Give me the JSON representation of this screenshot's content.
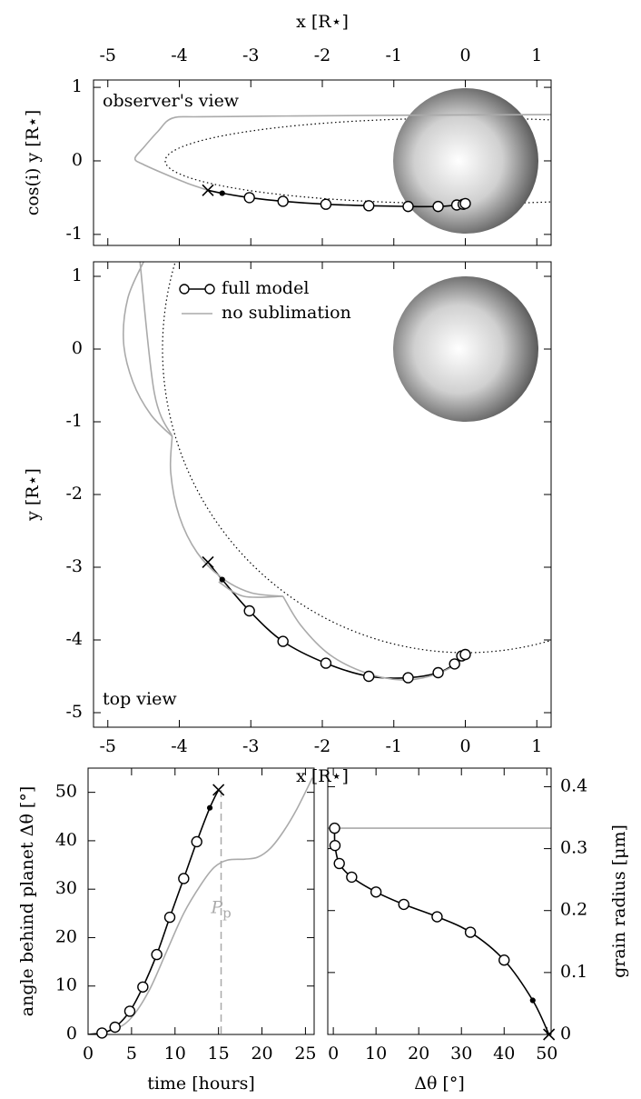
{
  "chart_data": [
    {
      "type": "line",
      "ylabel": "cos(i) y [R⋆]",
      "xlabel": "x [R⋆]",
      "x_axis_side": "top",
      "y_axis_side": "left",
      "annotation": "observer's view",
      "annotation_corner": "upper left",
      "xlim": [
        -5.2,
        1.2
      ],
      "ylim": [
        -1.15,
        1.1
      ],
      "xticks": [
        -5,
        -4,
        -3,
        -2,
        -1,
        0,
        1
      ],
      "yticks": [
        -1,
        0,
        1
      ],
      "series": [
        {
          "color": "#aaaaaa",
          "x": [
            1.2,
            -1.0,
            -2.5,
            -3.7,
            -4.1,
            -4.3,
            -4.5,
            -4.62,
            -4.5,
            -4.2,
            -3.9,
            -3.6
          ],
          "values": [
            0.63,
            0.62,
            0.61,
            0.6,
            0.58,
            0.4,
            0.18,
            0.03,
            -0.05,
            -0.18,
            -0.3,
            -0.4
          ],
          "markers": []
        },
        {
          "color": "#000000",
          "x": [
            -3.6,
            -3.4,
            -3.02,
            -2.55,
            -1.95,
            -1.35,
            -0.8,
            -0.38,
            -0.12,
            -0.03,
            0
          ],
          "values": [
            -0.4,
            -0.44,
            -0.5,
            -0.55,
            -0.59,
            -0.61,
            -0.62,
            -0.62,
            -0.6,
            -0.59,
            -0.58
          ],
          "markers": [
            "x",
            "dot",
            "o",
            "o",
            "o",
            "o",
            "o",
            "o",
            "o",
            "o",
            "o"
          ]
        }
      ]
    },
    {
      "type": "line",
      "ylabel": "y [R⋆]",
      "xlabel": "x [R⋆]",
      "x_axis_side": "bottom",
      "y_axis_side": "left",
      "annotation": "top view",
      "annotation_corner": "lower left",
      "legend": "upper left",
      "xlim": [
        -5.2,
        1.2
      ],
      "ylim": [
        -5.2,
        1.2
      ],
      "xticks": [
        -5,
        -4,
        -3,
        -2,
        -1,
        0,
        1
      ],
      "yticks": [
        -5,
        -4,
        -3,
        -2,
        -1,
        0,
        1
      ],
      "series": [
        {
          "name": "full model",
          "color": "#000000",
          "x": [
            -3.6,
            -3.4,
            -3.02,
            -2.55,
            -1.95,
            -1.35,
            -0.8,
            -0.38,
            -0.15,
            -0.05,
            0
          ],
          "values": [
            -2.93,
            -3.17,
            -3.6,
            -4.02,
            -4.32,
            -4.5,
            -4.52,
            -4.45,
            -4.33,
            -4.22,
            -4.2
          ],
          "markers": [
            "x",
            "dot",
            "o",
            "o",
            "o",
            "o",
            "o",
            "o",
            "o",
            "o",
            "o"
          ]
        },
        {
          "name": "no sublimation",
          "color": "#aaaaaa",
          "x": [
            -4.5,
            -4.72,
            -4.78,
            -4.65,
            -4.4,
            -4.1,
            null,
            -4.1,
            -4.12,
            -4.0,
            -3.75,
            -3.4,
            -3.0,
            -2.55,
            null,
            -3.45,
            -3.1,
            -2.55,
            null,
            -2.55,
            -2.3,
            -1.9,
            -1.4,
            -0.9,
            -0.5,
            -0.15,
            0,
            null,
            -4.1,
            -4.35,
            -4.55
          ],
          "values": [
            1.2,
            0.7,
            0.1,
            -0.45,
            -0.9,
            -1.2,
            null,
            -1.2,
            -1.7,
            -2.3,
            -2.8,
            -3.15,
            -3.35,
            -3.4,
            null,
            -3.2,
            -3.4,
            -3.4,
            null,
            -3.4,
            -3.8,
            -4.2,
            -4.45,
            -4.55,
            -4.5,
            -4.35,
            -4.2,
            null,
            -1.2,
            -0.6,
            1.2
          ],
          "markers": []
        }
      ]
    },
    {
      "type": "line",
      "ylabel": "angle behind planet Δθ [°]",
      "xlabel": "time [hours]",
      "x_axis_side": "bottom",
      "y_axis_side": "left",
      "xlim": [
        0,
        26
      ],
      "ylim": [
        0,
        55
      ],
      "xticks": [
        0,
        5,
        10,
        15,
        20,
        25
      ],
      "yticks": [
        0,
        10,
        20,
        30,
        40,
        50
      ],
      "vline": {
        "x": 15.3,
        "label": "P",
        "label_subscript": "p",
        "color": "#aaaaaa"
      },
      "series": [
        {
          "color": "#aaaaaa",
          "x": [
            0,
            3,
            5,
            7,
            9,
            11,
            13,
            14.5,
            16,
            18,
            19.5,
            21,
            22.5,
            24,
            25.8
          ],
          "values": [
            0,
            1,
            3.5,
            9,
            17,
            25,
            31,
            34.5,
            36,
            36.2,
            36.6,
            38.5,
            42,
            46.5,
            53
          ],
          "markers": []
        },
        {
          "color": "#000000",
          "x": [
            0,
            1.6,
            3.1,
            4.8,
            6.3,
            7.9,
            9.4,
            11,
            12.5,
            14,
            15
          ],
          "values": [
            0,
            0.3,
            1.5,
            4.8,
            9.8,
            16.5,
            24.2,
            32.2,
            39.8,
            46.8,
            50.5
          ],
          "markers": [
            "none",
            "o",
            "o",
            "o",
            "o",
            "o",
            "o",
            "o",
            "o",
            "dot",
            "x"
          ]
        }
      ]
    },
    {
      "type": "line",
      "ylabel": "grain radius [μm]",
      "xlabel": "Δθ [°]",
      "x_axis_side": "bottom",
      "y_axis_side": "right",
      "xlim": [
        -1.3,
        51
      ],
      "ylim": [
        0,
        0.43
      ],
      "xticks": [
        0,
        10,
        20,
        30,
        40,
        50
      ],
      "yticks": [
        0,
        0.1,
        0.2,
        0.3,
        0.4
      ],
      "series": [
        {
          "color": "#aaaaaa",
          "x": [
            -1.3,
            51
          ],
          "values": [
            0.333,
            0.333
          ],
          "markers": []
        },
        {
          "color": "#000000",
          "x": [
            0.3,
            0.4,
            1.4,
            4.3,
            10,
            16.5,
            24.3,
            32.1,
            40,
            46.7,
            50.5
          ],
          "values": [
            0.333,
            0.305,
            0.276,
            0.254,
            0.23,
            0.21,
            0.19,
            0.165,
            0.12,
            0.055,
            0
          ],
          "markers": [
            "o",
            "o",
            "o",
            "o",
            "o",
            "o",
            "o",
            "o",
            "o",
            "dot",
            "x"
          ]
        }
      ]
    }
  ]
}
